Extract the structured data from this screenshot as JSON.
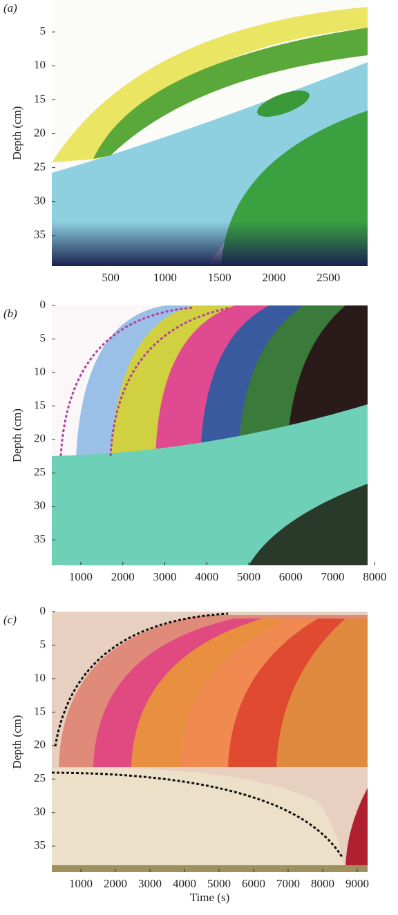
{
  "chart_data": [
    {
      "type": "image",
      "panel_label": "(a)",
      "y_label": "Depth (cm)",
      "xlim": [
        -40,
        2860
      ],
      "ylim": [
        0.3,
        39.5
      ],
      "xticks": [
        500,
        1000,
        1500,
        2000,
        2500
      ],
      "yticks": [
        5,
        10,
        15,
        20,
        25,
        30,
        35
      ]
    },
    {
      "type": "image",
      "panel_label": "(b)",
      "y_label": "Depth (cm)",
      "xlim": [
        310,
        7830
      ],
      "ylim": [
        0,
        38.8
      ],
      "xticks": [
        1000,
        2000,
        3000,
        4000,
        5000,
        6000,
        7000,
        8000
      ],
      "yticks": [
        0,
        5,
        10,
        15,
        20,
        25,
        30,
        35
      ]
    },
    {
      "type": "image",
      "panel_label": "(c)",
      "y_label": "Depth (cm)",
      "x_label": "Time (s)",
      "xlim": [
        160,
        9300
      ],
      "ylim": [
        0,
        38.9
      ],
      "xticks": [
        1000,
        2000,
        3000,
        4000,
        5000,
        6000,
        7000,
        8000,
        9000
      ],
      "yticks": [
        0,
        5,
        10,
        15,
        20,
        25,
        30,
        35
      ]
    }
  ]
}
